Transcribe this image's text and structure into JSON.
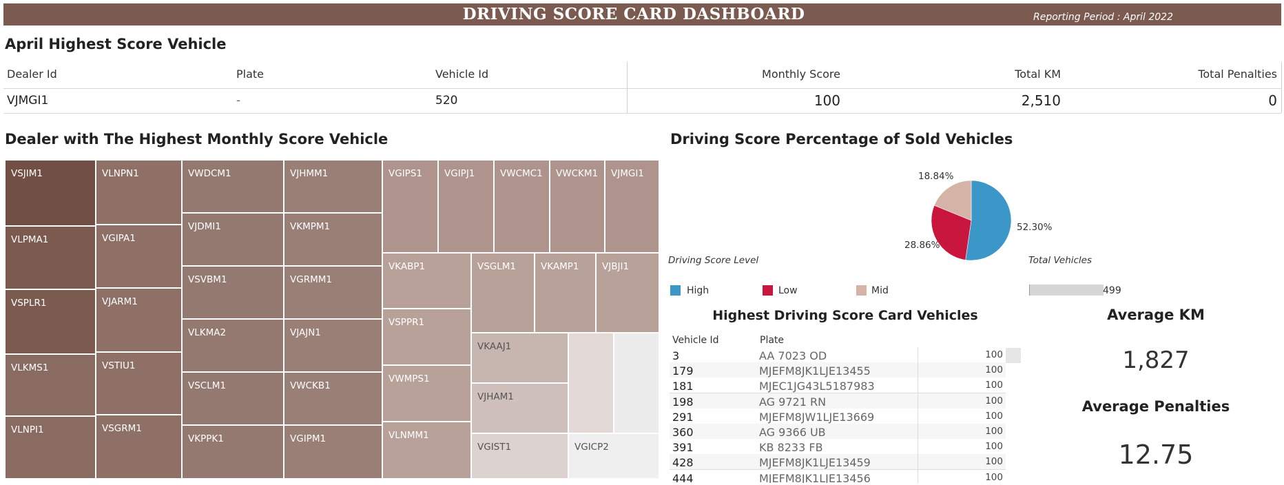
{
  "header": {
    "title": "DRIVING SCORE CARD DASHBOARD",
    "reporting_period": "Reporting Period : April 2022"
  },
  "highest_score": {
    "title": "April Highest Score Vehicle",
    "columns": [
      "Dealer Id",
      "Plate",
      "Vehicle Id",
      "Monthly Score",
      "Total KM",
      "Total Penalties"
    ],
    "row": {
      "dealer_id": "VJMGI1",
      "plate": "-",
      "vehicle_id": "520",
      "monthly_score": "100",
      "total_km": "2,510",
      "total_penalties": "0"
    }
  },
  "treemap": {
    "title": "Dealer with The Highest Monthly Score Vehicle",
    "cells": [
      {
        "label": "VSJIM1",
        "color": "#714f44"
      },
      {
        "label": "VLPMA1",
        "color": "#7c5a4f"
      },
      {
        "label": "VSPLR1",
        "color": "#7c5a4f"
      },
      {
        "label": "VLKMS1",
        "color": "#8a6b61"
      },
      {
        "label": "VLNPI1",
        "color": "#8a6b61"
      },
      {
        "label": "VLNPN1",
        "color": "#8e7067"
      },
      {
        "label": "VGIPA1",
        "color": "#8e7067"
      },
      {
        "label": "VJARM1",
        "color": "#8e7067"
      },
      {
        "label": "VSTIU1",
        "color": "#8e7067"
      },
      {
        "label": "VSGRM1",
        "color": "#8e7067"
      },
      {
        "label": "VWDCM1",
        "color": "#947971"
      },
      {
        "label": "VJDMI1",
        "color": "#947971"
      },
      {
        "label": "VSVBM1",
        "color": "#947971"
      },
      {
        "label": "VLKMA2",
        "color": "#947971"
      },
      {
        "label": "VSCLM1",
        "color": "#947971"
      },
      {
        "label": "VKPPK1",
        "color": "#947971"
      },
      {
        "label": "VJHMM1",
        "color": "#9a7f77"
      },
      {
        "label": "VKMPM1",
        "color": "#9a7f77"
      },
      {
        "label": "VGRMM1",
        "color": "#9a7f77"
      },
      {
        "label": "VJAJN1",
        "color": "#9a7f77"
      },
      {
        "label": "VWCKB1",
        "color": "#9a7f77"
      },
      {
        "label": "VGIPM1",
        "color": "#9a7f77"
      },
      {
        "label": "VGIPS1",
        "color": "#ae948c"
      },
      {
        "label": "VGIPJ1",
        "color": "#ae948c"
      },
      {
        "label": "VWCMC1",
        "color": "#ae948c"
      },
      {
        "label": "VWCKM1",
        "color": "#ae948c"
      },
      {
        "label": "VJMGI1",
        "color": "#ae948c"
      },
      {
        "label": "VKABP1",
        "color": "#b8a199"
      },
      {
        "label": "VSGLM1",
        "color": "#b8a199"
      },
      {
        "label": "VKAMP1",
        "color": "#b8a199"
      },
      {
        "label": "VJBJI1",
        "color": "#b8a199"
      },
      {
        "label": "VSPPR1",
        "color": "#b8a199"
      },
      {
        "label": "VWMPS1",
        "color": "#b8a199"
      },
      {
        "label": "VLNMM1",
        "color": "#b8a199"
      },
      {
        "label": "VKAAJ1",
        "color": "#c7b5af"
      },
      {
        "label": "VJHAM1",
        "color": "#cfc0bb"
      },
      {
        "label": "VGIST1",
        "color": "#dcd2cf"
      },
      {
        "label": "",
        "color": "#e3dad7"
      },
      {
        "label": "",
        "color": "#ececec"
      },
      {
        "label": "VGICP2",
        "color": "#f0efef"
      }
    ]
  },
  "pie": {
    "title": "Driving Score Percentage of Sold Vehicles",
    "legend_title": "Driving Score Level",
    "total_title": "Total Vehicles",
    "total_value": "499",
    "slices": [
      {
        "name": "High",
        "value": 52.3,
        "label": "52.30%",
        "color": "#3a97c8"
      },
      {
        "name": "Low",
        "value": 28.86,
        "label": "28.86%",
        "color": "#c8163f"
      },
      {
        "name": "Mid",
        "value": 18.84,
        "label": "18.84%",
        "color": "#d6b3a7"
      }
    ]
  },
  "vehicles": {
    "title": "Highest Driving Score Card Vehicles",
    "columns": [
      "Vehicle Id",
      "Plate"
    ],
    "rows": [
      {
        "id": "3",
        "plate": "AA 7023 OD",
        "score": "100"
      },
      {
        "id": "179",
        "plate": "MJEFM8JK1LJE13455",
        "score": "100"
      },
      {
        "id": "181",
        "plate": "MJEC1JG43L5187983",
        "score": "100"
      },
      {
        "id": "198",
        "plate": "AG 9721 RN",
        "score": "100"
      },
      {
        "id": "291",
        "plate": "MJEFM8JW1LJE13669",
        "score": "100"
      },
      {
        "id": "360",
        "plate": "AG 9366 UB",
        "score": "100"
      },
      {
        "id": "391",
        "plate": "KB 8233 FB",
        "score": "100"
      },
      {
        "id": "428",
        "plate": "MJEFM8JK1LJE13459",
        "score": "100"
      },
      {
        "id": "444",
        "plate": "MJEFM8JK1LJE13456",
        "score": "100"
      }
    ]
  },
  "kpis": {
    "avg_km_title": "Average KM",
    "avg_km_value": "1,827",
    "avg_pen_title": "Average Penalties",
    "avg_pen_value": "12.75"
  }
}
